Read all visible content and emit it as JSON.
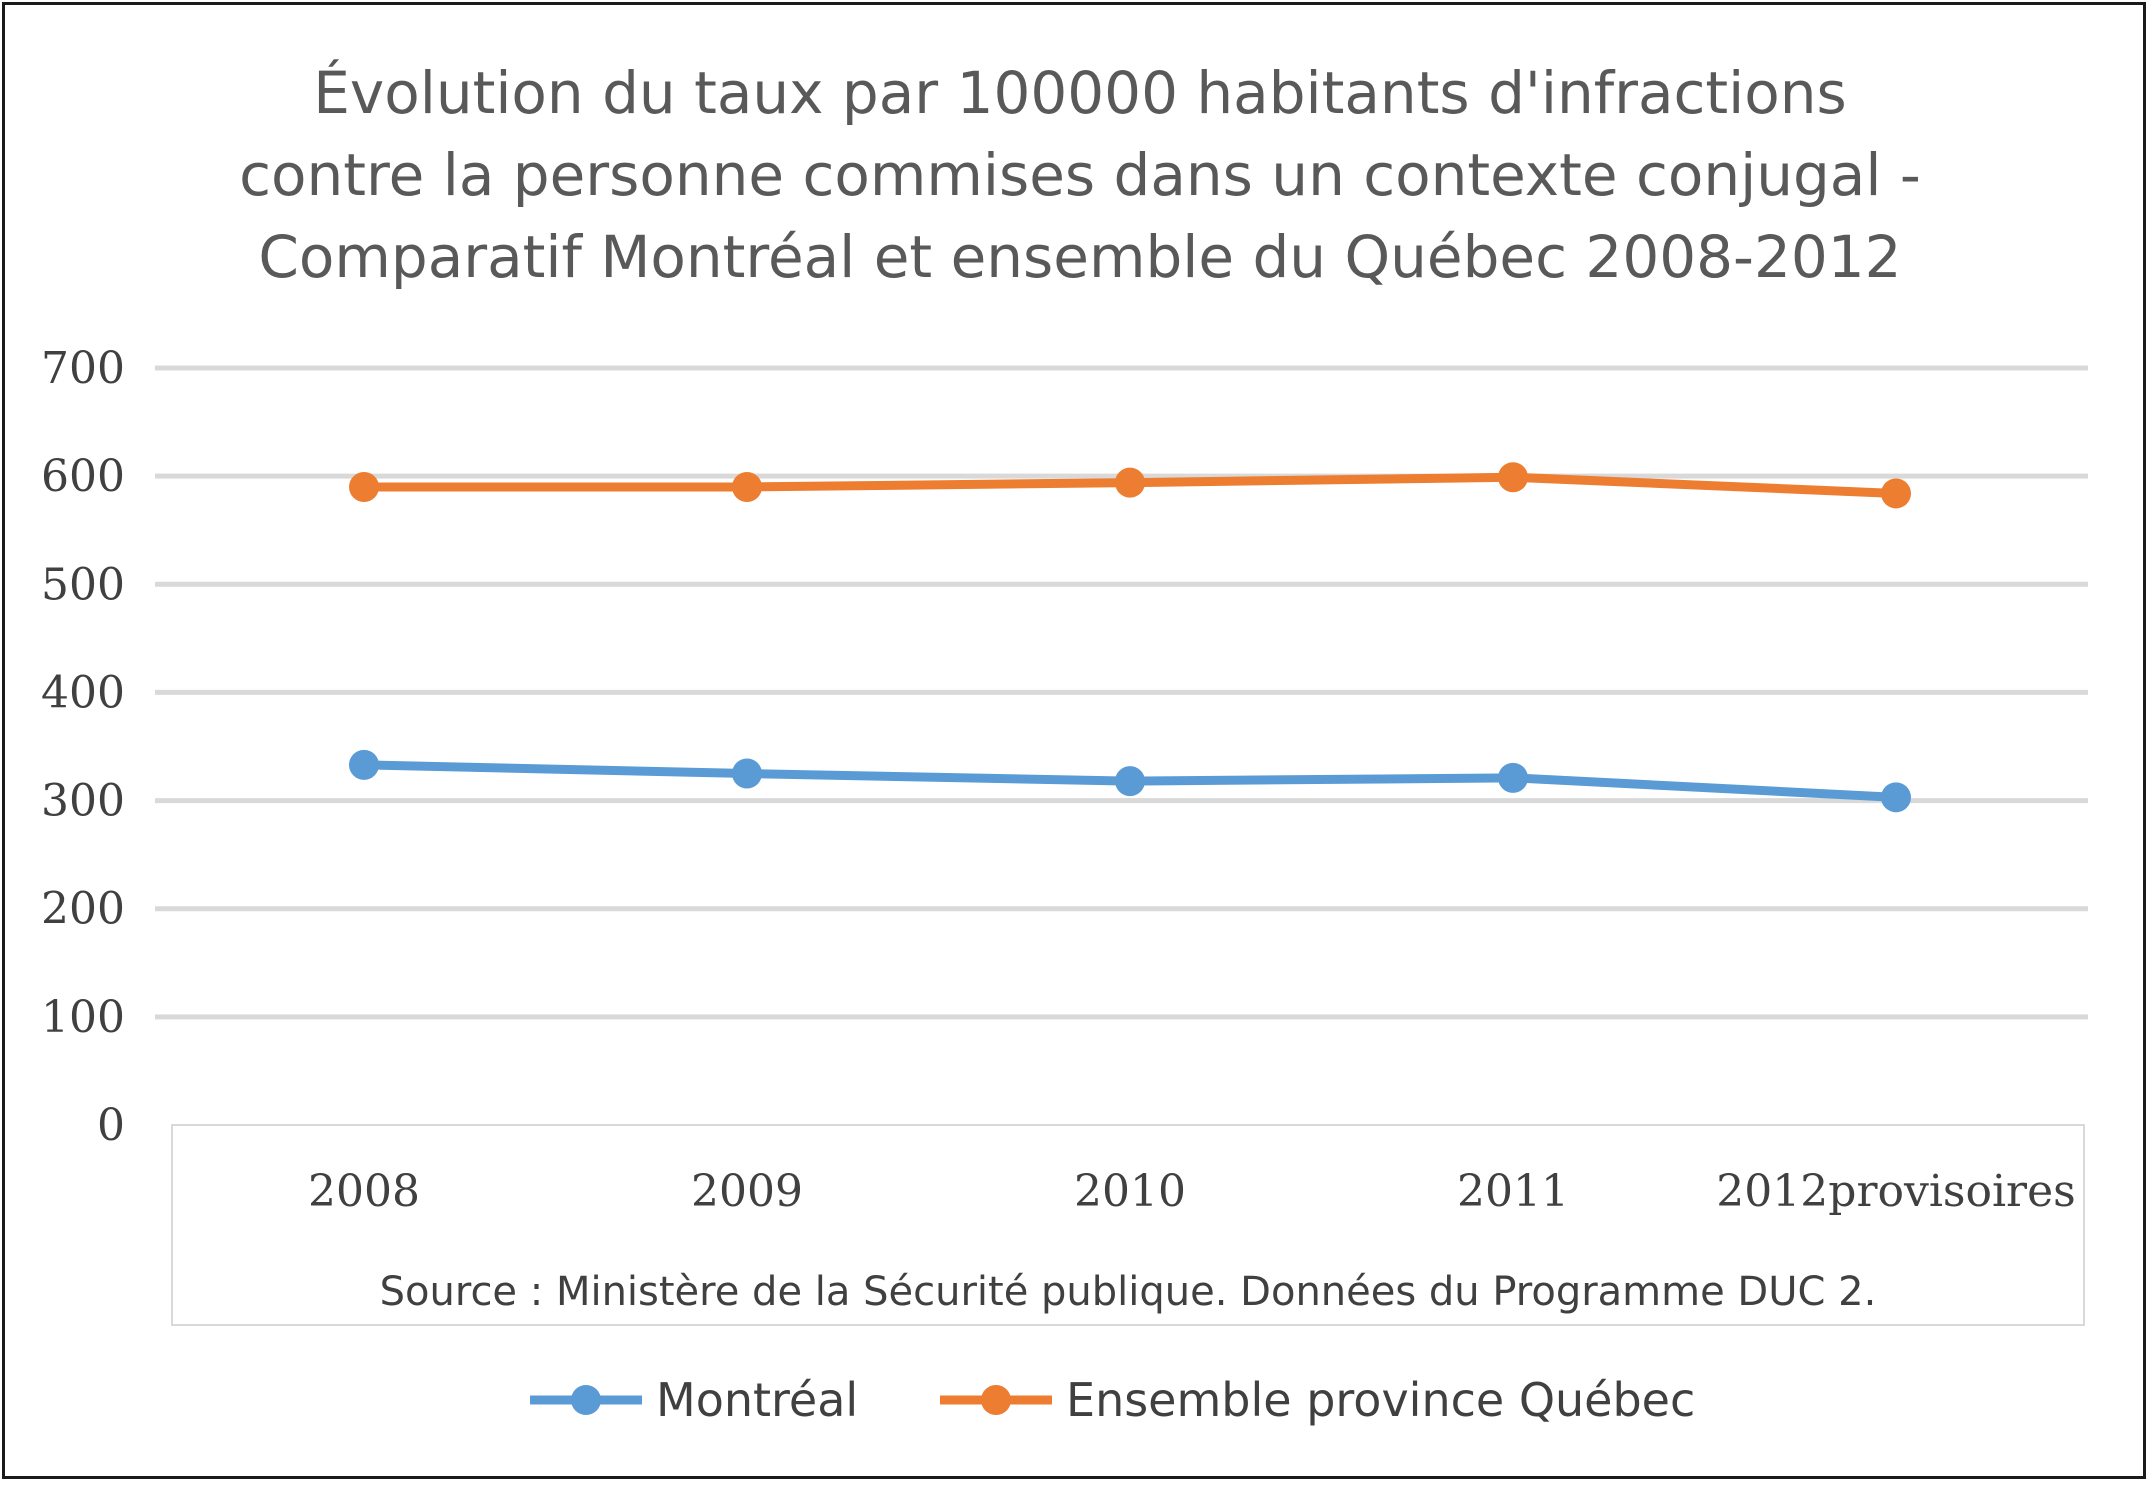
{
  "chart_data": {
    "type": "line",
    "title_lines": [
      "Évolution du taux par 100000 habitants d'infractions",
      "contre la personne commises dans un contexte conjugal -",
      "Comparatif Montréal et ensemble du Québec 2008-2012"
    ],
    "categories": [
      "2008",
      "2009",
      "2010",
      "2011",
      "2012provisoires"
    ],
    "series": [
      {
        "name": "Montréal",
        "color": "#5b9bd5",
        "values": [
          333,
          325,
          318,
          321,
          303
        ]
      },
      {
        "name": "Ensemble province Québec",
        "color": "#ed7d31",
        "values": [
          590,
          590,
          594,
          599,
          584
        ]
      }
    ],
    "y_ticks": [
      "0",
      "100",
      "200",
      "300",
      "400",
      "500",
      "600",
      "700"
    ],
    "ylim": [
      0,
      700
    ],
    "grid": true,
    "x_axis_note": "Source : Ministère de la Sécurité publique. Données du Programme DUC 2.",
    "legend_position": "bottom"
  }
}
